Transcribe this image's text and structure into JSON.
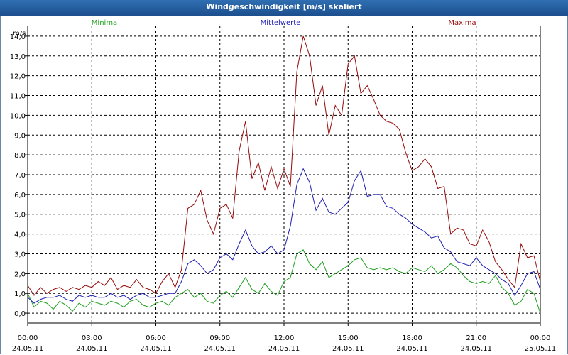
{
  "window": {
    "title": "Windgeschwindigkeit [m/s] skaliert"
  },
  "colors": {
    "min": "#1ea01e",
    "avg": "#1e1eb4",
    "max": "#960a0a",
    "axis": "#000000",
    "grid": "#000000"
  },
  "chart_data": {
    "type": "line",
    "title": "Windgeschwindigkeit [m/s] skaliert",
    "ylabel": "m/s",
    "xlabel": "",
    "ylim": [
      -0.5,
      14.5
    ],
    "xlim": [
      0,
      24
    ],
    "grid": true,
    "yticks": [
      0,
      1,
      2,
      3,
      4,
      5,
      6,
      7,
      8,
      9,
      10,
      11,
      12,
      13,
      14
    ],
    "ytick_labels": [
      "0,0",
      "1,0",
      "2,0",
      "3,0",
      "4,0",
      "5,0",
      "6,0",
      "7,0",
      "8,0",
      "9,0",
      "10,0",
      "11,0",
      "12,0",
      "13,0",
      "14,0"
    ],
    "xticks": [
      0,
      3,
      6,
      9,
      12,
      15,
      18,
      21,
      24
    ],
    "xtick_time": [
      "00:00",
      "03:00",
      "06:00",
      "09:00",
      "12:00",
      "15:00",
      "18:00",
      "21:00",
      "00:00"
    ],
    "xtick_date": [
      "24.05.11",
      "24.05.11",
      "24.05.11",
      "24.05.11",
      "24.05.11",
      "24.05.11",
      "24.05.11",
      "24.05.11",
      "25.05.11"
    ],
    "legend": [
      "Minima",
      "Mittelwerte",
      "Maxima"
    ],
    "series": [
      {
        "name": "Minima",
        "key": "min",
        "x": [
          0,
          0.3,
          0.6,
          0.9,
          1.2,
          1.5,
          1.8,
          2.1,
          2.4,
          2.7,
          3,
          3.3,
          3.6,
          3.9,
          4.2,
          4.5,
          4.8,
          5.1,
          5.4,
          5.7,
          6,
          6.3,
          6.6,
          6.9,
          7.2,
          7.5,
          7.8,
          8.1,
          8.4,
          8.7,
          9,
          9.3,
          9.6,
          9.9,
          10.2,
          10.5,
          10.8,
          11.1,
          11.4,
          11.7,
          12,
          12.3,
          12.6,
          12.9,
          13.2,
          13.5,
          13.8,
          14.1,
          14.4,
          14.7,
          15,
          15.3,
          15.6,
          15.9,
          16.2,
          16.5,
          16.8,
          17.1,
          17.4,
          17.7,
          18,
          18.3,
          18.6,
          18.9,
          19.2,
          19.5,
          19.8,
          20.1,
          20.4,
          20.7,
          21,
          21.3,
          21.6,
          21.9,
          22.2,
          22.5,
          22.8,
          23.1,
          23.4,
          23.7,
          24
        ],
        "values": [
          1.0,
          0.3,
          0.6,
          0.5,
          0.2,
          0.6,
          0.4,
          0.1,
          0.5,
          0.3,
          0.6,
          0.5,
          0.4,
          0.6,
          0.5,
          0.3,
          0.6,
          0.7,
          0.4,
          0.3,
          0.5,
          0.6,
          0.4,
          0.8,
          1.0,
          1.2,
          0.8,
          1.0,
          0.6,
          0.5,
          0.9,
          1.1,
          0.8,
          1.3,
          1.8,
          1.2,
          1.0,
          1.5,
          1.1,
          0.9,
          1.6,
          1.8,
          3.0,
          3.2,
          2.5,
          2.2,
          2.6,
          1.8,
          2.0,
          2.2,
          2.4,
          2.7,
          2.8,
          2.3,
          2.2,
          2.3,
          2.2,
          2.3,
          2.1,
          2.0,
          2.3,
          2.2,
          2.1,
          2.4,
          2.0,
          2.2,
          2.5,
          2.3,
          1.9,
          1.6,
          1.5,
          1.6,
          1.5,
          1.9,
          1.3,
          1.0,
          0.4,
          0.6,
          1.2,
          1.0,
          0.0
        ]
      },
      {
        "name": "Mittelwerte",
        "key": "avg",
        "x": [
          0,
          0.3,
          0.6,
          0.9,
          1.2,
          1.5,
          1.8,
          2.1,
          2.4,
          2.7,
          3,
          3.3,
          3.6,
          3.9,
          4.2,
          4.5,
          4.8,
          5.1,
          5.4,
          5.7,
          6,
          6.3,
          6.6,
          6.9,
          7.2,
          7.5,
          7.8,
          8.1,
          8.4,
          8.7,
          9,
          9.3,
          9.6,
          9.9,
          10.2,
          10.5,
          10.8,
          11.1,
          11.4,
          11.7,
          12,
          12.3,
          12.6,
          12.9,
          13.2,
          13.5,
          13.8,
          14.1,
          14.4,
          14.7,
          15,
          15.3,
          15.6,
          15.9,
          16.2,
          16.5,
          16.8,
          17.1,
          17.4,
          17.7,
          18,
          18.3,
          18.6,
          18.9,
          19.2,
          19.5,
          19.8,
          20.1,
          20.4,
          20.7,
          21,
          21.3,
          21.6,
          21.9,
          22.2,
          22.5,
          22.8,
          23.1,
          23.4,
          23.7,
          24
        ],
        "values": [
          0.8,
          0.5,
          0.7,
          0.8,
          0.8,
          0.9,
          0.7,
          0.6,
          0.9,
          0.8,
          0.9,
          0.8,
          0.8,
          1.0,
          0.8,
          0.9,
          0.7,
          0.9,
          1.0,
          0.8,
          0.8,
          0.9,
          1.0,
          1.0,
          1.6,
          2.5,
          2.7,
          2.4,
          2.0,
          2.2,
          2.8,
          3.0,
          2.7,
          3.5,
          4.2,
          3.4,
          3.0,
          3.1,
          3.4,
          3.0,
          3.2,
          4.4,
          6.5,
          7.3,
          6.6,
          5.2,
          5.8,
          5.1,
          5.0,
          5.3,
          5.6,
          6.7,
          7.2,
          5.9,
          6.0,
          6.0,
          5.4,
          5.3,
          5.0,
          4.8,
          4.5,
          4.3,
          4.1,
          3.8,
          3.9,
          3.3,
          3.1,
          2.6,
          2.5,
          2.4,
          2.8,
          2.4,
          2.2,
          2.0,
          1.7,
          1.5,
          0.9,
          1.4,
          2.0,
          2.1,
          1.2
        ]
      },
      {
        "name": "Maxima",
        "key": "max",
        "x": [
          0,
          0.3,
          0.6,
          0.9,
          1.2,
          1.5,
          1.8,
          2.1,
          2.4,
          2.7,
          3,
          3.3,
          3.6,
          3.9,
          4.2,
          4.5,
          4.8,
          5.1,
          5.4,
          5.7,
          6,
          6.3,
          6.6,
          6.9,
          7.2,
          7.5,
          7.8,
          8.1,
          8.4,
          8.7,
          9,
          9.3,
          9.6,
          9.9,
          10.2,
          10.5,
          10.8,
          11.1,
          11.4,
          11.7,
          12,
          12.3,
          12.6,
          12.9,
          13.2,
          13.5,
          13.8,
          14.1,
          14.4,
          14.7,
          15,
          15.3,
          15.6,
          15.9,
          16.2,
          16.5,
          16.8,
          17.1,
          17.4,
          17.7,
          18,
          18.3,
          18.6,
          18.9,
          19.2,
          19.5,
          19.8,
          20.1,
          20.4,
          20.7,
          21,
          21.3,
          21.6,
          21.9,
          22.2,
          22.5,
          22.8,
          23.1,
          23.4,
          23.7,
          24
        ],
        "values": [
          1.4,
          0.9,
          1.3,
          1.0,
          1.2,
          1.3,
          1.1,
          1.3,
          1.2,
          1.4,
          1.3,
          1.6,
          1.4,
          1.8,
          1.2,
          1.4,
          1.3,
          1.7,
          1.3,
          1.2,
          1.0,
          1.6,
          2.0,
          1.3,
          2.2,
          5.3,
          5.5,
          6.2,
          4.7,
          4.0,
          5.3,
          5.5,
          4.8,
          8.2,
          9.7,
          6.8,
          7.6,
          6.2,
          7.4,
          6.3,
          7.3,
          6.4,
          12.2,
          14.0,
          13.0,
          10.5,
          11.5,
          9.0,
          10.5,
          10.0,
          12.6,
          13.0,
          11.1,
          11.5,
          10.8,
          10.0,
          9.7,
          9.6,
          9.3,
          8.1,
          7.2,
          7.4,
          7.8,
          7.4,
          6.3,
          6.4,
          4.0,
          4.3,
          4.2,
          3.5,
          3.4,
          4.2,
          3.6,
          2.6,
          2.2,
          1.7,
          1.3,
          3.5,
          2.8,
          2.9,
          1.6
        ]
      }
    ]
  }
}
